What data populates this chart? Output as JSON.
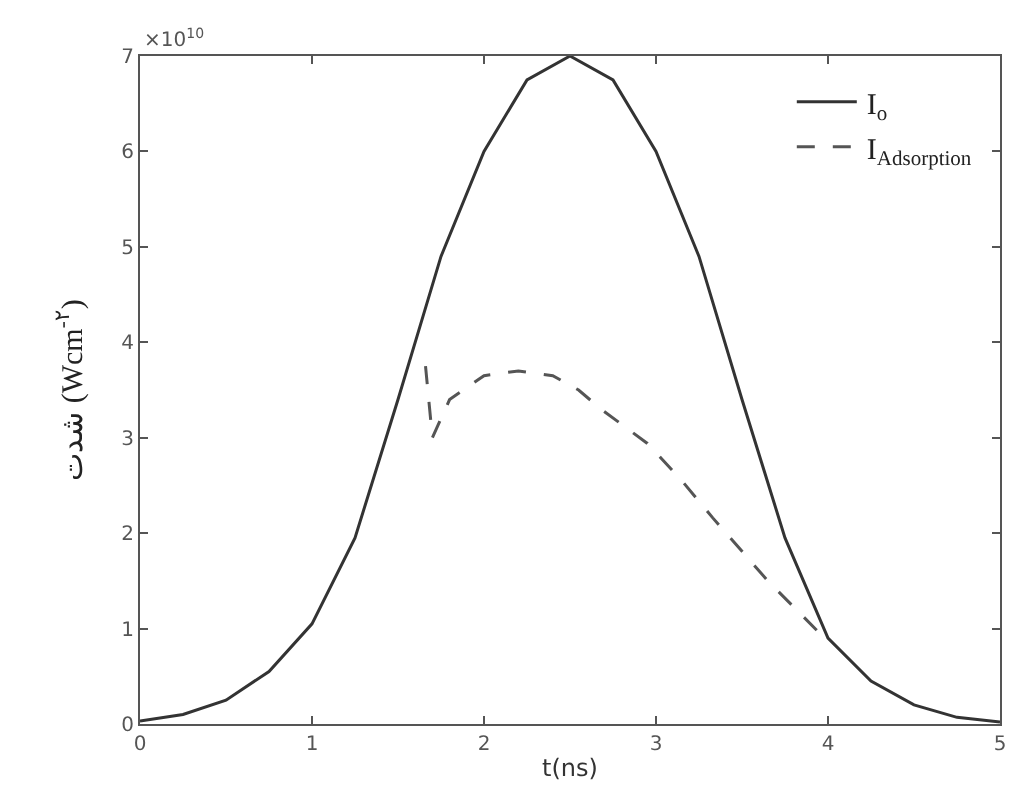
{
  "chart_data": {
    "type": "line",
    "xlabel": "t(ns)",
    "ylabel": "شدت (Wcm$^{-۲}$)",
    "annotations": [
      "×10$^{10}$"
    ],
    "xlim": [
      0,
      5
    ],
    "xticks": [
      0,
      1,
      2,
      3,
      4,
      5
    ],
    "ylim": [
      0,
      7
    ],
    "yticks": [
      0,
      1,
      2,
      3,
      4,
      5,
      6,
      7
    ],
    "legend": "top right",
    "marker": "none",
    "series": [
      {
        "name": "I$_{o}$",
        "color": "#333333",
        "line_style": "solid",
        "x": [
          0,
          0.25,
          0.5,
          0.75,
          1,
          1.25,
          1.5,
          1.75,
          2,
          2.25,
          2.5,
          2.75,
          3,
          3.25,
          3.5,
          3.75,
          4,
          4.25,
          4.5,
          4.75,
          5
        ],
        "values": [
          0.03,
          0.1,
          0.25,
          0.55,
          1.05,
          1.95,
          3.4,
          4.9,
          6.0,
          6.75,
          7.0,
          6.75,
          6.0,
          4.9,
          3.4,
          1.95,
          0.9,
          0.45,
          0.2,
          0.07,
          0.02
        ]
      },
      {
        "name": "I$_{Adsorption}$",
        "color": "#555555",
        "line_style": "dashed",
        "x": [
          1.66,
          1.7,
          1.8,
          2.0,
          2.2,
          2.4,
          2.55,
          2.68,
          2.95,
          3.15,
          3.33,
          3.65,
          3.98
        ],
        "values": [
          3.75,
          3.0,
          3.4,
          3.65,
          3.7,
          3.65,
          3.5,
          3.3,
          2.94,
          2.55,
          2.16,
          1.5,
          0.9
        ]
      }
    ]
  }
}
